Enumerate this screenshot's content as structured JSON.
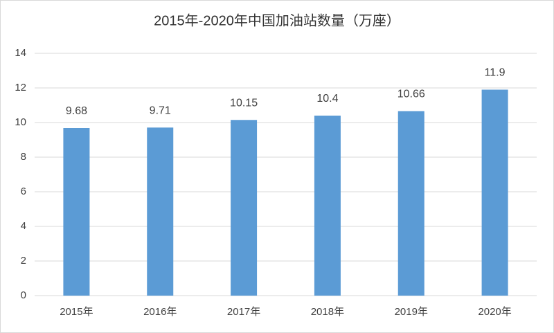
{
  "chart_data": {
    "type": "bar",
    "title": "2015年-2020年中国加油站数量（万座）",
    "categories": [
      "2015年",
      "2016年",
      "2017年",
      "2018年",
      "2019年",
      "2020年"
    ],
    "values": [
      9.68,
      9.71,
      10.15,
      10.4,
      10.66,
      11.9
    ],
    "color": "#5b9bd5",
    "ylim": [
      0,
      14
    ],
    "yticks": [
      0,
      2,
      4,
      6,
      8,
      10,
      12,
      14
    ],
    "grid": true
  }
}
